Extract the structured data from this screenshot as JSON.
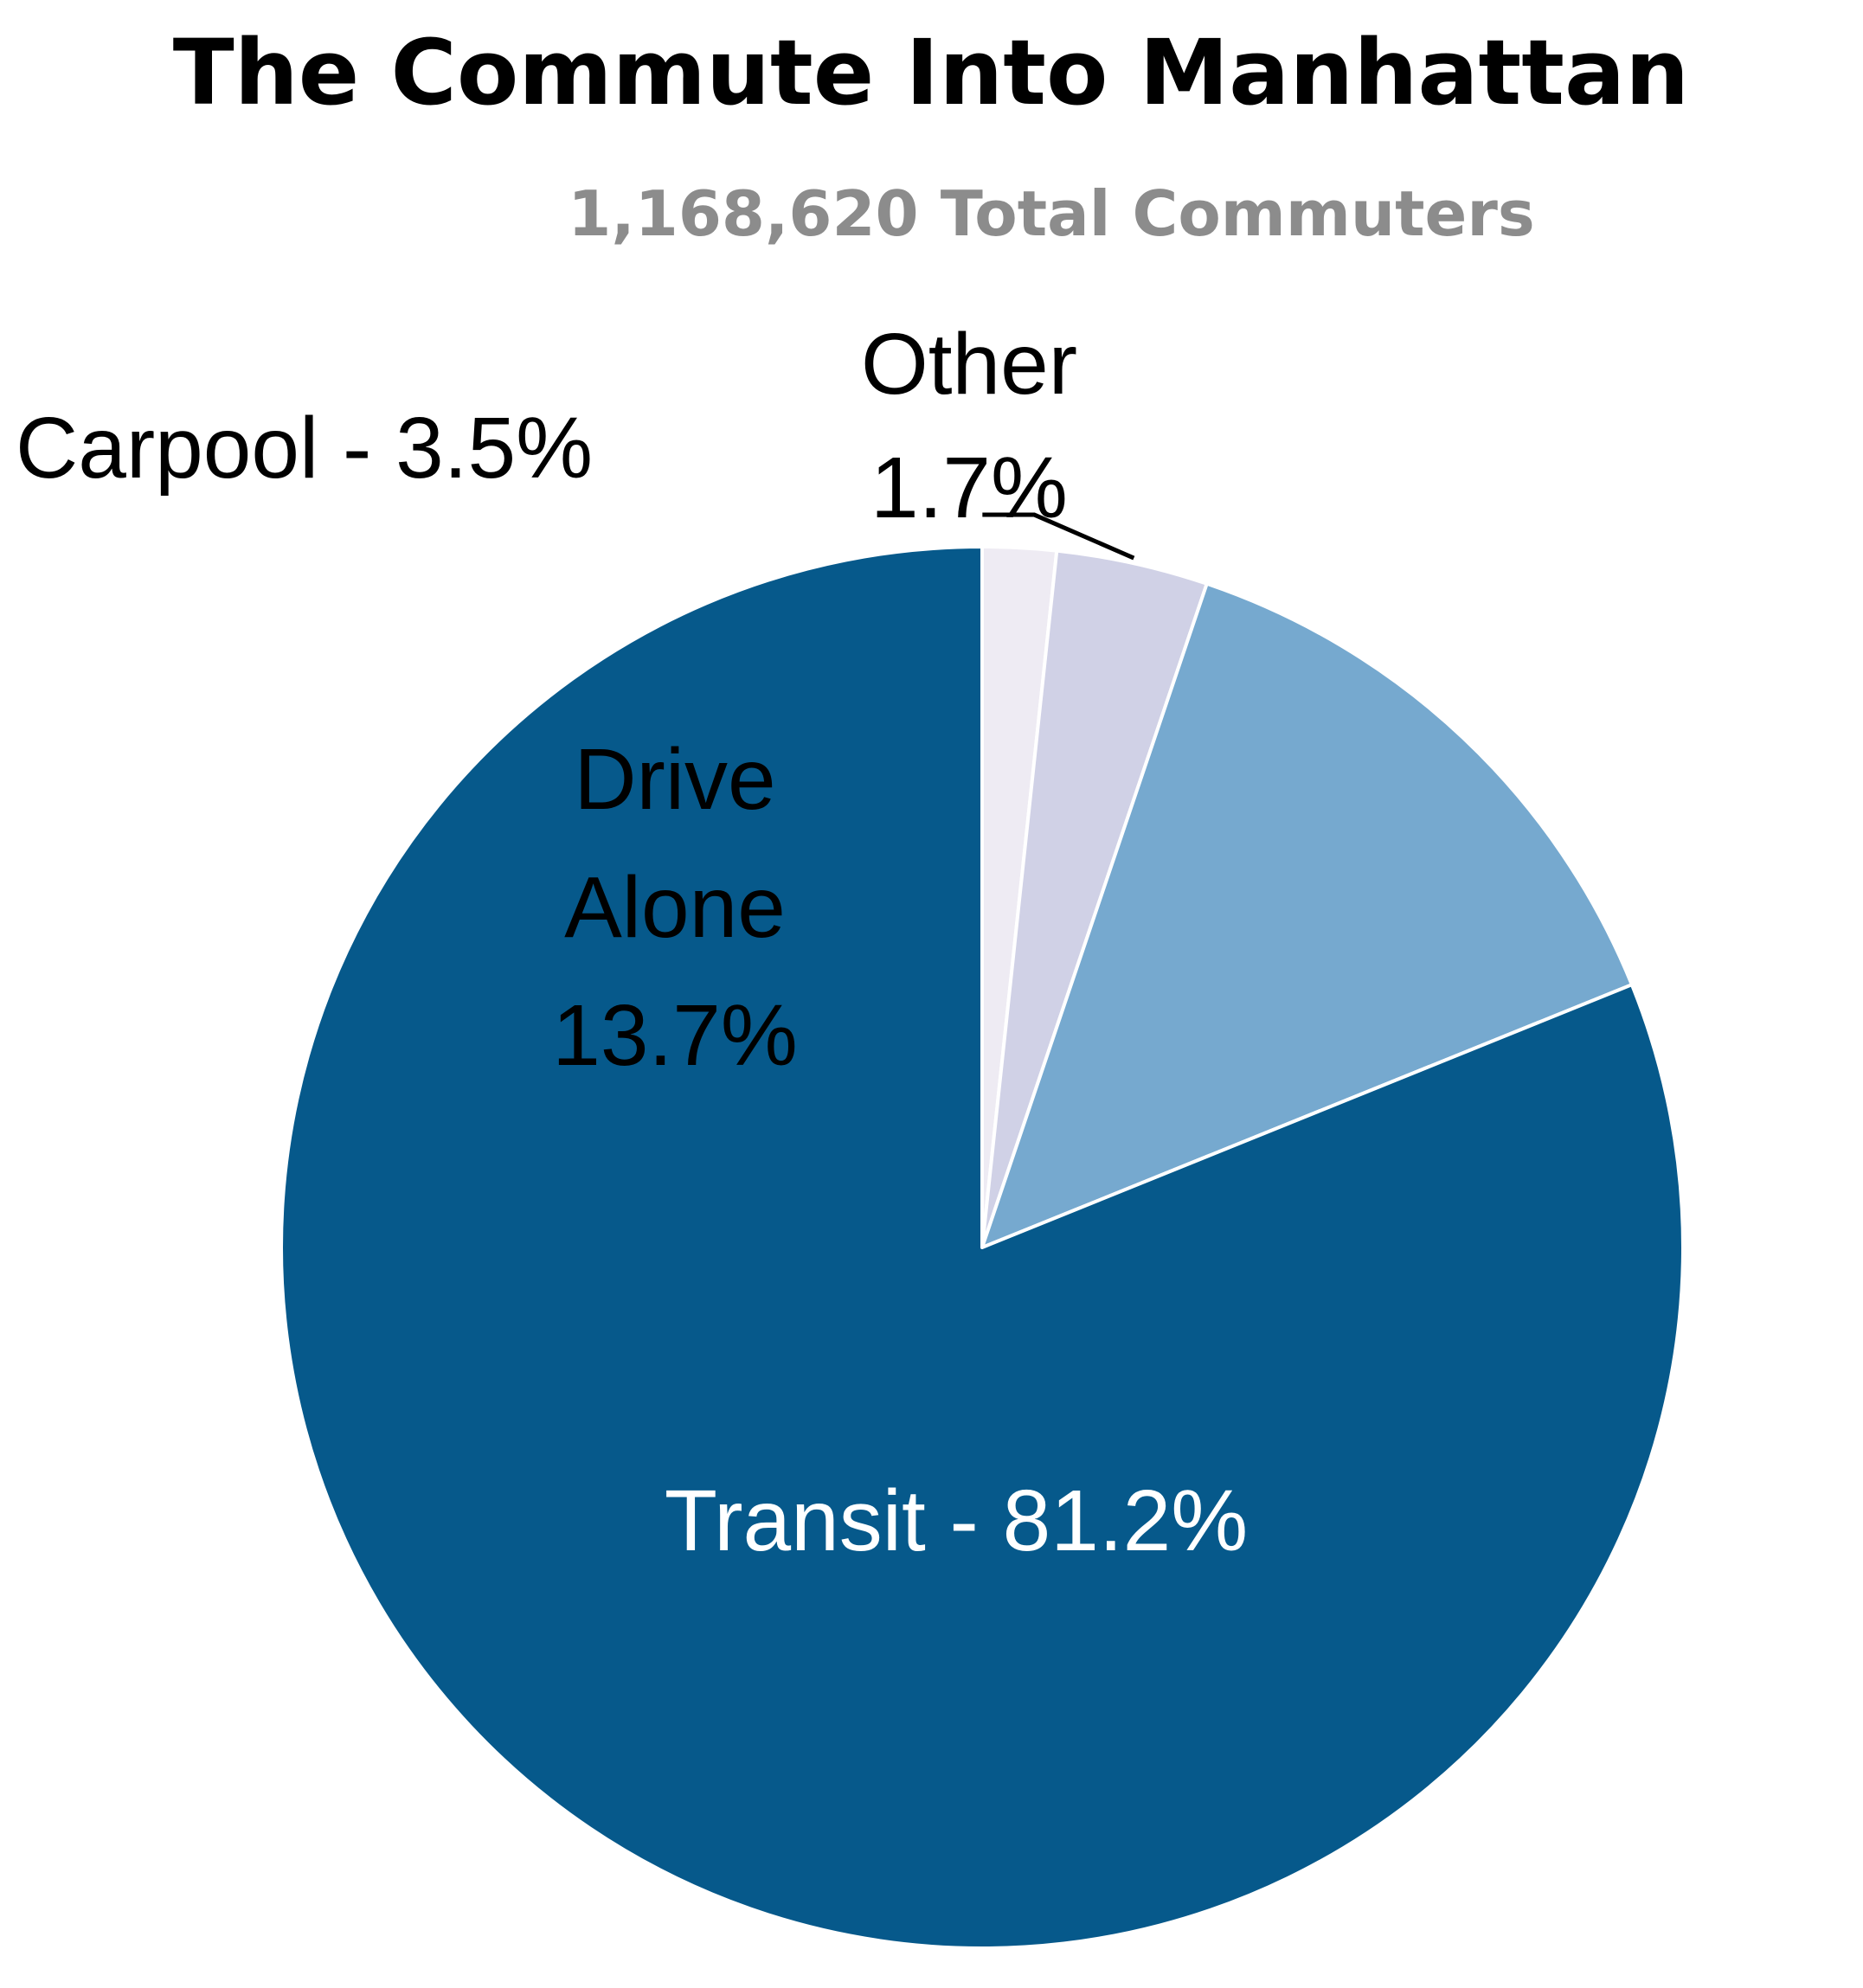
{
  "chart_data": {
    "type": "pie",
    "title": "The Commute Into Manhattan",
    "subtitle": "1,168,620 Total Commuters",
    "slices": [
      {
        "name": "Transit",
        "value": 81.2,
        "color": "#06598b",
        "label_lines": [
          "Transit - 81.2%"
        ]
      },
      {
        "name": "Drive Alone",
        "value": 13.7,
        "color": "#76a9cf",
        "label_lines": [
          "Drive",
          "Alone",
          "13.7%"
        ]
      },
      {
        "name": "Carpool",
        "value": 3.5,
        "color": "#d0d1e6",
        "label_lines": [
          "Carpool - 3.5%"
        ]
      },
      {
        "name": "Other",
        "value": 1.7,
        "color": "#eeebf3",
        "label_lines": [
          "Other",
          "1.7%"
        ]
      }
    ],
    "start_angle": "12 o'clock",
    "direction": "clockwise",
    "legend": "none"
  }
}
